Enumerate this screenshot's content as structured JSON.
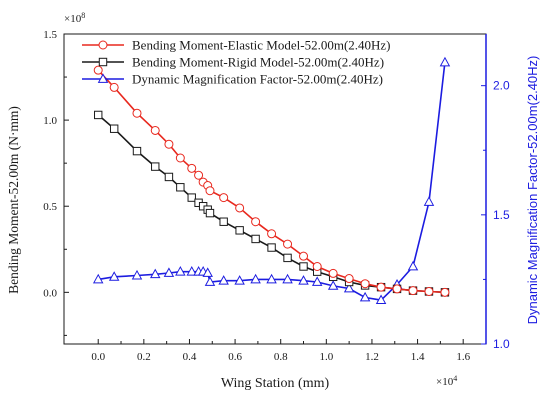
{
  "chart_data": {
    "type": "line",
    "x_multiplier": "×10^4",
    "y_multiplier": "×10^8",
    "xlabel": "Wing Station (mm)",
    "ylabel_left": "Bending Moment-52.00m (N·mm)",
    "ylabel_right": "Dynamic Magnification Factor-52.00m(2.40Hz)",
    "xlim": [
      -0.15,
      1.7
    ],
    "ylim_left": [
      -0.3,
      1.5
    ],
    "ylim_right": [
      1.0,
      2.2
    ],
    "x_ticks": [
      0.0,
      0.2,
      0.4,
      0.6,
      0.8,
      1.0,
      1.2,
      1.4,
      1.6
    ],
    "x_tick_labels": [
      "0.0",
      "0.2",
      "0.4",
      "0.6",
      "0.8",
      "1.0",
      "1.2",
      "1.4",
      "1.6"
    ],
    "y_left_ticks": [
      0.0,
      0.5,
      1.0,
      1.5
    ],
    "y_left_tick_labels": [
      "0.0",
      "0.5",
      "1.0",
      "1.5"
    ],
    "y_right_ticks": [
      1.0,
      1.5,
      2.0
    ],
    "y_right_tick_labels": [
      "1.0",
      "1.5",
      "2.0"
    ],
    "legend_position": "top-left",
    "grid": false,
    "series": [
      {
        "name": "Bending Moment-Elastic Model-52.00m(2.40Hz)",
        "axis": "left",
        "color": "#e8281e",
        "marker": "circle",
        "x": [
          0.0,
          0.07,
          0.17,
          0.25,
          0.31,
          0.36,
          0.41,
          0.44,
          0.46,
          0.48,
          0.49,
          0.55,
          0.62,
          0.69,
          0.76,
          0.83,
          0.9,
          0.96,
          1.03,
          1.1,
          1.17,
          1.24,
          1.31,
          1.38,
          1.45,
          1.52
        ],
        "y": [
          1.29,
          1.19,
          1.04,
          0.94,
          0.86,
          0.78,
          0.72,
          0.68,
          0.64,
          0.62,
          0.59,
          0.55,
          0.49,
          0.41,
          0.34,
          0.28,
          0.21,
          0.15,
          0.11,
          0.08,
          0.05,
          0.03,
          0.02,
          0.01,
          0.005,
          0.0
        ]
      },
      {
        "name": "Bending Moment-Rigid Model-52.00m(2.40Hz)",
        "axis": "left",
        "color": "#1a1a1a",
        "marker": "square",
        "x": [
          0.0,
          0.07,
          0.17,
          0.25,
          0.31,
          0.36,
          0.41,
          0.44,
          0.46,
          0.48,
          0.49,
          0.55,
          0.62,
          0.69,
          0.76,
          0.83,
          0.9,
          0.96,
          1.03,
          1.1,
          1.17,
          1.24,
          1.31,
          1.38,
          1.45,
          1.52
        ],
        "y": [
          1.03,
          0.95,
          0.82,
          0.73,
          0.67,
          0.61,
          0.55,
          0.52,
          0.5,
          0.48,
          0.46,
          0.41,
          0.36,
          0.31,
          0.26,
          0.2,
          0.15,
          0.12,
          0.09,
          0.06,
          0.04,
          0.03,
          0.02,
          0.01,
          0.005,
          0.0
        ]
      },
      {
        "name": "Dynamic Magnification Factor-52.00m(2.40Hz)",
        "axis": "right",
        "color": "#1c1ce0",
        "marker": "triangle",
        "x": [
          0.0,
          0.07,
          0.17,
          0.25,
          0.31,
          0.36,
          0.41,
          0.44,
          0.46,
          0.48,
          0.49,
          0.55,
          0.62,
          0.69,
          0.76,
          0.83,
          0.9,
          0.96,
          1.03,
          1.1,
          1.17,
          1.24,
          1.31,
          1.38,
          1.45,
          1.52
        ],
        "y": [
          1.25,
          1.26,
          1.265,
          1.27,
          1.275,
          1.28,
          1.28,
          1.28,
          1.28,
          1.275,
          1.24,
          1.245,
          1.245,
          1.25,
          1.25,
          1.25,
          1.245,
          1.24,
          1.225,
          1.215,
          1.18,
          1.17,
          1.23,
          1.3,
          1.55,
          2.09
        ]
      }
    ]
  }
}
